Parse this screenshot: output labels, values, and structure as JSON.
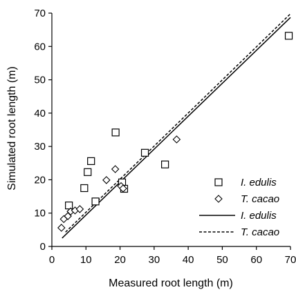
{
  "chart_data": {
    "type": "scatter",
    "title": "",
    "xlabel": "Measured root length (m)",
    "ylabel": "Simulated root length (m)",
    "xlim": [
      0,
      70
    ],
    "ylim": [
      0,
      70
    ],
    "xticks": [
      0,
      10,
      20,
      30,
      40,
      50,
      60,
      70
    ],
    "yticks": [
      0,
      10,
      20,
      30,
      40,
      50,
      60,
      70
    ],
    "grid": false,
    "legend_position": "bottom-right",
    "series": [
      {
        "name": "I. edulis",
        "kind": "points",
        "marker": "open-square",
        "points": [
          [
            5,
            12.3
          ],
          [
            9.5,
            17.5
          ],
          [
            10.5,
            22.3
          ],
          [
            11.5,
            25.6
          ],
          [
            12.8,
            13.5
          ],
          [
            18.7,
            34.2
          ],
          [
            20.6,
            19.2
          ],
          [
            21.2,
            17.3
          ],
          [
            27.3,
            28.1
          ],
          [
            33.2,
            24.6
          ],
          [
            69.5,
            63.2
          ]
        ]
      },
      {
        "name": "T. cacao",
        "kind": "points",
        "marker": "open-diamond",
        "points": [
          [
            2.8,
            5.6
          ],
          [
            3.5,
            8.2
          ],
          [
            4.7,
            9.1
          ],
          [
            5.5,
            10.5
          ],
          [
            6.8,
            10.8
          ],
          [
            8.2,
            11.2
          ],
          [
            16,
            19.9
          ],
          [
            18.6,
            23.2
          ],
          [
            20.3,
            18.1
          ],
          [
            20.9,
            17.4
          ],
          [
            36.6,
            32.1
          ]
        ]
      },
      {
        "name": "I. edulis",
        "kind": "line",
        "style": "solid",
        "points": [
          [
            3,
            2.5
          ],
          [
            70,
            68.7
          ]
        ]
      },
      {
        "name": "T. cacao",
        "kind": "line",
        "style": "dashed",
        "points": [
          [
            4,
            4.3
          ],
          [
            70,
            69.8
          ]
        ]
      }
    ]
  }
}
